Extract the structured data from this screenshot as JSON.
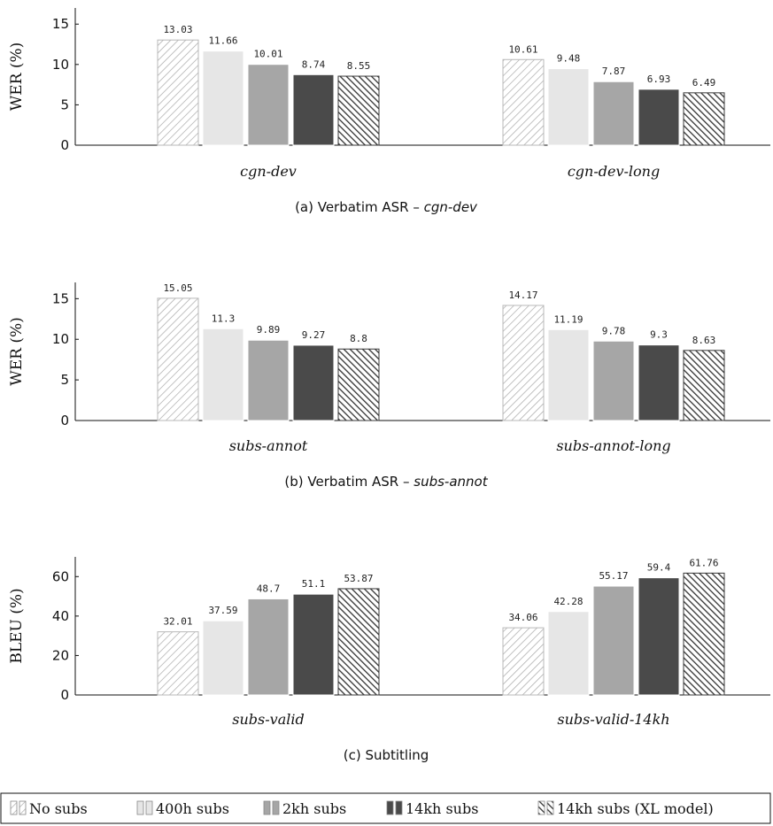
{
  "chart_data": [
    {
      "type": "bar",
      "caption": {
        "prefix": "(a) Verbatim ASR – ",
        "emphasis": "cgn-dev"
      },
      "ylabel": "WER (%)",
      "ylim": [
        0,
        17
      ],
      "yticks": [
        0,
        5,
        10,
        15
      ],
      "grid": false,
      "categories": [
        "cgn-dev",
        "cgn-dev-long"
      ],
      "series": [
        {
          "name": "No subs",
          "values": [
            13.03,
            10.61
          ],
          "value_labels": [
            "13.03",
            "10.61"
          ]
        },
        {
          "name": "400h subs",
          "values": [
            11.66,
            9.48
          ],
          "value_labels": [
            "11.66",
            "9.48"
          ]
        },
        {
          "name": "2kh subs",
          "values": [
            10.01,
            7.87
          ],
          "value_labels": [
            "10.01",
            "7.87"
          ]
        },
        {
          "name": "14kh subs",
          "values": [
            8.74,
            6.93
          ],
          "value_labels": [
            "8.74",
            "6.93"
          ]
        },
        {
          "name": "14kh subs (XL model)",
          "values": [
            8.55,
            6.49
          ],
          "value_labels": [
            "8.55",
            "6.49"
          ]
        }
      ]
    },
    {
      "type": "bar",
      "caption": {
        "prefix": "(b) Verbatim ASR – ",
        "emphasis": "subs-annot"
      },
      "ylabel": "WER (%)",
      "ylim": [
        0,
        17
      ],
      "yticks": [
        0,
        5,
        10,
        15
      ],
      "grid": false,
      "categories": [
        "subs-annot",
        "subs-annot-long"
      ],
      "series": [
        {
          "name": "No subs",
          "values": [
            15.05,
            14.17
          ],
          "value_labels": [
            "15.05",
            "14.17"
          ]
        },
        {
          "name": "400h subs",
          "values": [
            11.3,
            11.19
          ],
          "value_labels": [
            "11.3",
            "11.19"
          ]
        },
        {
          "name": "2kh subs",
          "values": [
            9.89,
            9.78
          ],
          "value_labels": [
            "9.89",
            "9.78"
          ]
        },
        {
          "name": "14kh subs",
          "values": [
            9.27,
            9.3
          ],
          "value_labels": [
            "9.27",
            "9.3"
          ]
        },
        {
          "name": "14kh subs (XL model)",
          "values": [
            8.8,
            8.63
          ],
          "value_labels": [
            "8.8",
            "8.63"
          ]
        }
      ]
    },
    {
      "type": "bar",
      "caption": {
        "prefix": "(c) Subtitling",
        "emphasis": ""
      },
      "ylabel": "BLEU (%)",
      "ylim": [
        0,
        70
      ],
      "yticks": [
        0,
        20,
        40,
        60
      ],
      "grid": false,
      "categories": [
        "subs-valid",
        "subs-valid-14kh"
      ],
      "series": [
        {
          "name": "No subs",
          "values": [
            32.01,
            34.06
          ],
          "value_labels": [
            "32.01",
            "34.06"
          ]
        },
        {
          "name": "400h subs",
          "values": [
            37.59,
            42.28
          ],
          "value_labels": [
            "37.59",
            "42.28"
          ]
        },
        {
          "name": "2kh subs",
          "values": [
            48.7,
            55.17
          ],
          "value_labels": [
            "48.7",
            "55.17"
          ]
        },
        {
          "name": "14kh subs",
          "values": [
            51.1,
            59.4
          ],
          "value_labels": [
            "51.1",
            "59.4"
          ]
        },
        {
          "name": "14kh subs (XL model)",
          "values": [
            53.87,
            61.76
          ],
          "value_labels": [
            "53.87",
            "61.76"
          ]
        }
      ]
    }
  ],
  "series_styles": [
    {
      "name": "No subs",
      "fill": "url(#pat-hatch-fwd)",
      "stroke": "#b8b8b8"
    },
    {
      "name": "400h subs",
      "fill": "#e6e6e6",
      "stroke": "#ffffff"
    },
    {
      "name": "2kh subs",
      "fill": "#a6a6a6",
      "stroke": "#ffffff"
    },
    {
      "name": "14kh subs",
      "fill": "#4a4a4a",
      "stroke": "#ffffff"
    },
    {
      "name": "14kh subs (XL model)",
      "fill": "url(#pat-hatch-back)",
      "stroke": "#3a3a3a"
    }
  ],
  "legend": {
    "placement": "bottom",
    "items": [
      "No subs",
      "400h subs",
      "2kh subs",
      "14kh subs",
      "14kh subs (XL model)"
    ]
  }
}
